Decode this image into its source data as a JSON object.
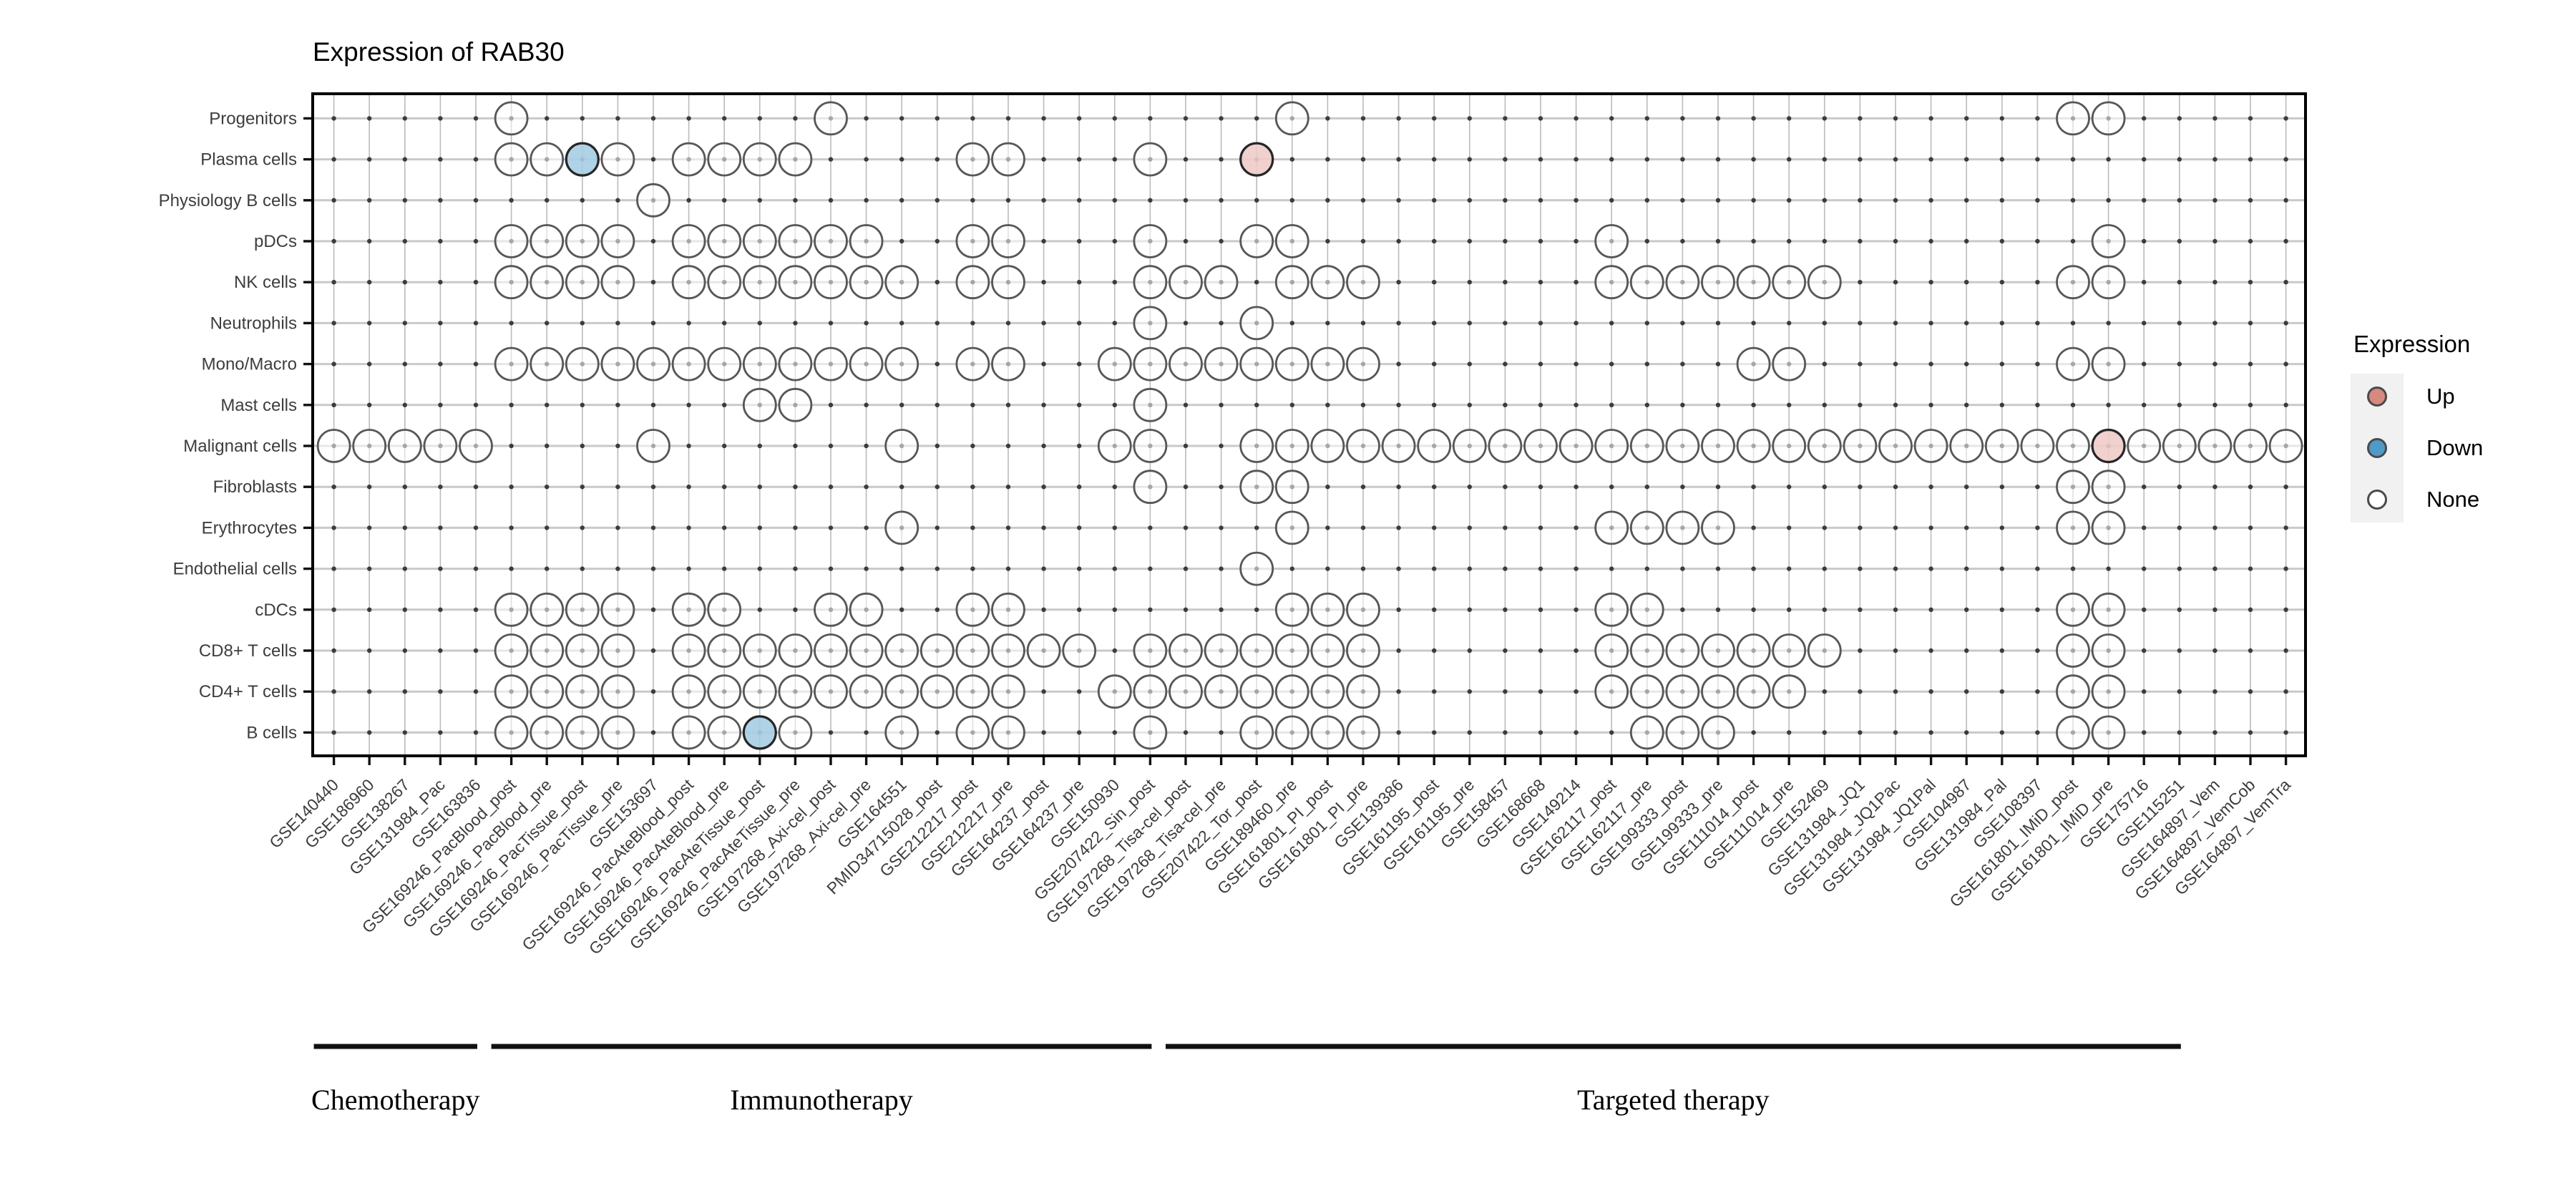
{
  "title": "Expression of RAB30",
  "legend": {
    "title": "Expression",
    "items": [
      {
        "label": "Up",
        "color": "#d6897f"
      },
      {
        "label": "Down",
        "color": "#4f9bc7"
      },
      {
        "label": "None",
        "color": "#ffffff"
      }
    ]
  },
  "chart_data": {
    "type": "dot_matrix",
    "title": "Expression of RAB30",
    "legend_title": "Expression",
    "legend_levels": [
      "Up",
      "Down",
      "None"
    ],
    "colors": {
      "up_fill": "#efccc8",
      "down_fill": "#a6cde4",
      "none_fill": "#ffffff",
      "circle_stroke": "#575757",
      "colored_stroke": "#262626",
      "grid_v": "#bbbbbb",
      "grid_h": "#c9c9c9",
      "grid_dot": "#3c3c3c",
      "frame": "#000000"
    },
    "rows": [
      "Progenitors",
      "Plasma cells",
      "Physiology B cells",
      "pDCs",
      "NK cells",
      "Neutrophils",
      "Mono/Macro",
      "Mast cells",
      "Malignant cells",
      "Fibroblasts",
      "Erythrocytes",
      "Endothelial cells",
      "cDCs",
      "CD8+ T cells",
      "CD4+ T cells",
      "B cells"
    ],
    "columns": [
      "GSE140440",
      "GSE186960",
      "GSE138267",
      "GSE131984_Pac",
      "GSE163836",
      "GSE169246_PacBlood_post",
      "GSE169246_PacBlood_pre",
      "GSE169246_PacTissue_post",
      "GSE169246_PacTissue_pre",
      "GSE153697",
      "GSE169246_PacAteBlood_post",
      "GSE169246_PacAteBlood_pre",
      "GSE169246_PacAteTissue_post",
      "GSE169246_PacAteTissue_pre",
      "GSE197268_Axi-cel_post",
      "GSE197268_Axi-cel_pre",
      "GSE164551",
      "PMID34715028_post",
      "GSE212217_post",
      "GSE212217_pre",
      "GSE164237_post",
      "GSE164237_pre",
      "GSE150930",
      "GSE207422_Sin_post",
      "GSE197268_Tisa-cel_post",
      "GSE197268_Tisa-cel_pre",
      "GSE207422_Tor_post",
      "GSE189460_pre",
      "GSE161801_PI_post",
      "GSE161801_PI_pre",
      "GSE139386",
      "GSE161195_post",
      "GSE161195_pre",
      "GSE158457",
      "GSE168668",
      "GSE149214",
      "GSE162117_post",
      "GSE162117_pre",
      "GSE199333_post",
      "GSE199333_pre",
      "GSE111014_post",
      "GSE111014_pre",
      "GSE152469",
      "GSE131984_JQ1",
      "GSE131984_JQ1Pac",
      "GSE131984_JQ1Pal",
      "GSE104987",
      "GSE131984_Pal",
      "GSE108397",
      "GSE161801_IMiD_post",
      "GSE161801_IMiD_pre",
      "GSE175716",
      "GSE115251",
      "GSE164897_Vem",
      "GSE164897_VemCob",
      "GSE164897_VemTra"
    ],
    "presence": {
      "Progenitors": [
        6,
        15,
        28,
        50,
        51
      ],
      "Plasma cells": [
        6,
        7,
        8,
        9,
        11,
        12,
        13,
        14,
        19,
        20,
        24,
        27
      ],
      "Physiology B cells": [
        10
      ],
      "pDCs": [
        6,
        7,
        8,
        9,
        11,
        12,
        13,
        14,
        15,
        16,
        19,
        20,
        24,
        27,
        28,
        37,
        51
      ],
      "NK cells": [
        6,
        7,
        8,
        9,
        11,
        12,
        13,
        14,
        15,
        16,
        17,
        19,
        20,
        24,
        25,
        26,
        28,
        29,
        30,
        37,
        38,
        39,
        40,
        41,
        42,
        43,
        50,
        51
      ],
      "Neutrophils": [
        24,
        27
      ],
      "Mono/Macro": [
        6,
        7,
        8,
        9,
        10,
        11,
        12,
        13,
        14,
        15,
        16,
        17,
        19,
        20,
        23,
        24,
        25,
        26,
        27,
        28,
        29,
        30,
        41,
        42,
        50,
        51
      ],
      "Mast cells": [
        13,
        14,
        24
      ],
      "Malignant cells": [
        1,
        2,
        3,
        4,
        5,
        10,
        17,
        23,
        24,
        27,
        28,
        29,
        30,
        31,
        32,
        33,
        34,
        35,
        36,
        37,
        38,
        39,
        40,
        41,
        42,
        43,
        44,
        45,
        46,
        47,
        48,
        49,
        50,
        51,
        52,
        53,
        54,
        55,
        56
      ],
      "Fibroblasts": [
        24,
        27,
        28,
        50,
        51
      ],
      "Erythrocytes": [
        17,
        28,
        37,
        38,
        39,
        40,
        50,
        51
      ],
      "Endothelial cells": [
        27
      ],
      "cDCs": [
        6,
        7,
        8,
        9,
        11,
        12,
        15,
        16,
        19,
        20,
        28,
        29,
        30,
        37,
        38,
        50,
        51
      ],
      "CD8+ T cells": [
        6,
        7,
        8,
        9,
        11,
        12,
        13,
        14,
        15,
        16,
        17,
        18,
        19,
        20,
        21,
        22,
        24,
        25,
        26,
        27,
        28,
        29,
        30,
        37,
        38,
        39,
        40,
        41,
        42,
        43,
        50,
        51
      ],
      "CD4+ T cells": [
        6,
        7,
        8,
        9,
        11,
        12,
        13,
        14,
        15,
        16,
        17,
        18,
        19,
        20,
        23,
        24,
        25,
        26,
        27,
        28,
        29,
        30,
        37,
        38,
        39,
        40,
        41,
        42,
        50,
        51
      ],
      "B cells": [
        6,
        7,
        8,
        9,
        11,
        12,
        13,
        14,
        17,
        19,
        20,
        24,
        27,
        28,
        29,
        30,
        38,
        39,
        40,
        50,
        51
      ]
    },
    "colored_points": [
      {
        "row": "Plasma cells",
        "col": 8,
        "expression": "Down"
      },
      {
        "row": "Plasma cells",
        "col": 27,
        "expression": "Up"
      },
      {
        "row": "B cells",
        "col": 13,
        "expression": "Down"
      },
      {
        "row": "Malignant cells",
        "col": 51,
        "expression": "Up"
      }
    ],
    "groups": [
      {
        "label": "Chemotherapy",
        "col_start": 1,
        "col_end": 5
      },
      {
        "label": "Immunotherapy",
        "col_start": 6,
        "col_end": 24
      },
      {
        "label": "Targeted therapy",
        "col_start": 25,
        "col_end": 53
      }
    ]
  }
}
